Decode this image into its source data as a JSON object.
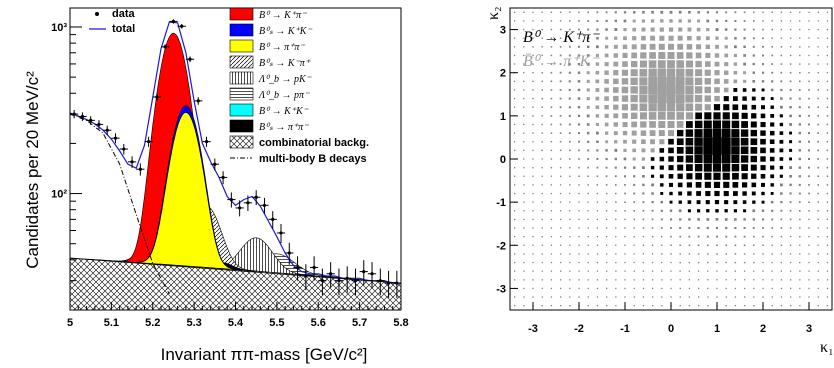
{
  "chart_data": [
    {
      "type": "line",
      "xlabel": "Invariant  ππ-mass [GeV/c²]",
      "ylabel": "Candidates per 20 MeV/c²",
      "xlim": [
        5.0,
        5.8
      ],
      "ylim": [
        20,
        1300
      ],
      "yscale": "log",
      "x_ticks": [
        "5",
        "5.1",
        "5.2",
        "5.3",
        "5.4",
        "5.5",
        "5.6",
        "5.7",
        "5.8"
      ],
      "y_ticks": [
        "10²",
        "10³"
      ],
      "legend_placement": "top-right",
      "legend": [
        {
          "label": "data",
          "color": "#000000",
          "style": "marker"
        },
        {
          "label": "total",
          "color": "#1a1ad6",
          "style": "line"
        },
        {
          "label": "B⁰ → K⁺π⁻",
          "color": "#ff0000",
          "style": "fill"
        },
        {
          "label": "B⁰ₛ → K⁺K⁻",
          "color": "#0000ff",
          "style": "fill"
        },
        {
          "label": "B⁰ → π⁺π⁻",
          "color": "#ffff00",
          "style": "fill"
        },
        {
          "label": "B⁰ₛ → K⁻π⁺",
          "color": "#000000",
          "style": "hatch-diagonal"
        },
        {
          "label": "Λ⁰_b → pK⁻",
          "color": "#000000",
          "style": "hatch-vertical"
        },
        {
          "label": "Λ⁰_b → pπ⁻",
          "color": "#000000",
          "style": "hatch-horizontal"
        },
        {
          "label": "B⁰ → K⁺K⁻",
          "color": "#00ffff",
          "style": "fill"
        },
        {
          "label": "B⁰ₛ → π⁺π⁻",
          "color": "#000000",
          "style": "fill"
        },
        {
          "label": "combinatorial backg.",
          "color": "#000000",
          "style": "hatch-cross"
        },
        {
          "label": "multi-body B decays",
          "color": "#000000",
          "style": "dash-dot"
        }
      ],
      "series": [
        {
          "name": "data",
          "x": [
            5.01,
            5.03,
            5.05,
            5.07,
            5.09,
            5.11,
            5.13,
            5.15,
            5.17,
            5.19,
            5.21,
            5.23,
            5.25,
            5.27,
            5.29,
            5.31,
            5.33,
            5.35,
            5.37,
            5.39,
            5.41,
            5.43,
            5.45,
            5.47,
            5.49,
            5.51,
            5.53,
            5.55,
            5.57,
            5.59,
            5.61,
            5.63,
            5.65,
            5.67,
            5.69,
            5.71,
            5.73,
            5.75,
            5.77,
            5.79
          ],
          "y": [
            300,
            290,
            275,
            260,
            240,
            215,
            185,
            155,
            140,
            205,
            380,
            760,
            1080,
            1010,
            640,
            360,
            205,
            150,
            125,
            92,
            82,
            88,
            95,
            85,
            70,
            58,
            44,
            36,
            32,
            36,
            30,
            33,
            30,
            31,
            30,
            34,
            33,
            30,
            29,
            29
          ]
        },
        {
          "name": "total",
          "x": [
            5.0,
            5.02,
            5.04,
            5.06,
            5.08,
            5.1,
            5.12,
            5.14,
            5.16,
            5.18,
            5.2,
            5.22,
            5.24,
            5.26,
            5.28,
            5.3,
            5.32,
            5.34,
            5.36,
            5.38,
            5.4,
            5.42,
            5.44,
            5.46,
            5.48,
            5.5,
            5.52,
            5.54,
            5.56,
            5.58,
            5.6,
            5.62,
            5.64,
            5.66,
            5.68,
            5.7,
            5.72,
            5.74,
            5.76,
            5.78,
            5.8
          ],
          "y": [
            305,
            292,
            278,
            262,
            240,
            212,
            180,
            150,
            142,
            195,
            380,
            740,
            1070,
            1060,
            700,
            360,
            200,
            155,
            125,
            96,
            85,
            92,
            96,
            84,
            68,
            55,
            44,
            37,
            34,
            33,
            33,
            32,
            32,
            31,
            31,
            31,
            30,
            30,
            30,
            29,
            29
          ]
        },
        {
          "name": "combinatorial backg.",
          "x": [
            5.0,
            5.8
          ],
          "y": [
            41,
            29
          ]
        },
        {
          "name": "multi-body B decays",
          "x": [
            5.0,
            5.04,
            5.08,
            5.12,
            5.16,
            5.2,
            5.24
          ],
          "y": [
            300,
            275,
            230,
            150,
            75,
            38,
            25
          ]
        }
      ]
    },
    {
      "type": "heatmap",
      "xlabel": "κ₁",
      "ylabel": "κ₂",
      "xlim": [
        -3.5,
        3.5
      ],
      "ylim": [
        -3.5,
        3.5
      ],
      "x_ticks": [
        "-3",
        "-2",
        "-1",
        "0",
        "1",
        "2",
        "3"
      ],
      "y_ticks": [
        "-3",
        "-2",
        "-1",
        "0",
        "1",
        "2",
        "3"
      ],
      "legend_placement": "top-left",
      "legend": [
        {
          "label": "B⁰ → K⁺π⁻",
          "color": "#000000"
        },
        {
          "label": "B̄⁰ → π⁺K⁻",
          "color": "#a0a0a0"
        }
      ],
      "series": [
        {
          "name": "B⁰ → K⁺π⁻",
          "color": "#000000",
          "center": [
            1.0,
            0.3
          ],
          "width": [
            0.65,
            0.65
          ]
        },
        {
          "name": "B̄⁰ → π⁺K⁻",
          "color": "#a0a0a0",
          "center": [
            -0.1,
            1.6
          ],
          "width": [
            0.7,
            0.7
          ]
        }
      ]
    }
  ]
}
